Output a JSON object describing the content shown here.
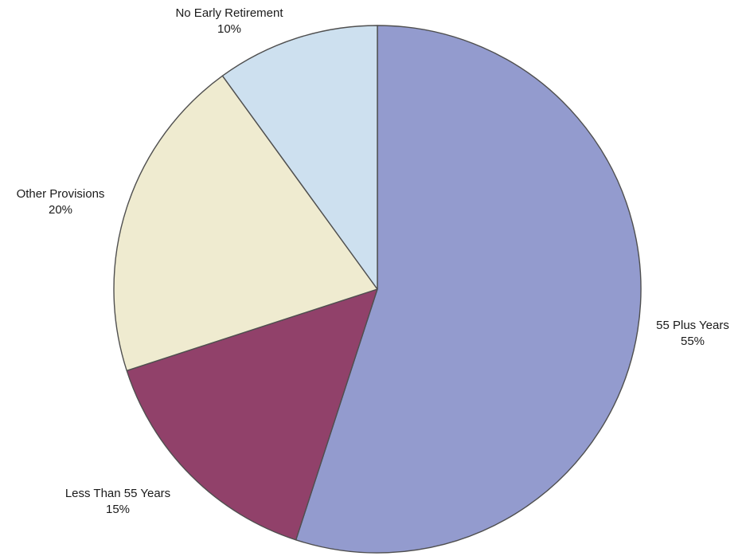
{
  "chart_data": {
    "type": "pie",
    "title": "",
    "slices": [
      {
        "label": "55 Plus Years",
        "value": 55,
        "value_label": "55%",
        "color": "#939bce"
      },
      {
        "label": "Less Than 55 Years",
        "value": 15,
        "value_label": "15%",
        "color": "#91416a"
      },
      {
        "label": "Other Provisions",
        "value": 20,
        "value_label": "20%",
        "color": "#efebd0"
      },
      {
        "label": "No Early Retirement",
        "value": 10,
        "value_label": "10%",
        "color": "#cde0ef"
      }
    ],
    "start_angle": "12 o'clock",
    "direction": "clockwise",
    "legend": "none",
    "background": "#ffffff",
    "outline_color": "#4f4f4f"
  }
}
